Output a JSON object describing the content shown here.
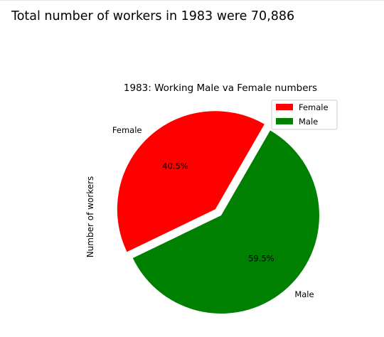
{
  "heading": "Total number of workers in 1983 were 70,886",
  "chart_data": {
    "type": "pie",
    "title": "1983: Working Male va Female numbers",
    "ylabel": "Number of workers",
    "slices": [
      {
        "label": "Female",
        "pct_label": "40.5%",
        "share": 0.405,
        "color": "#ff0000",
        "exploded": true
      },
      {
        "label": "Male",
        "pct_label": "59.5%",
        "share": 0.595,
        "color": "#008000",
        "exploded": false
      }
    ],
    "legend": {
      "placement": "top-right",
      "entries": [
        {
          "label": "Female",
          "color": "#ff0000"
        },
        {
          "label": "Male",
          "color": "#008000"
        }
      ]
    }
  }
}
